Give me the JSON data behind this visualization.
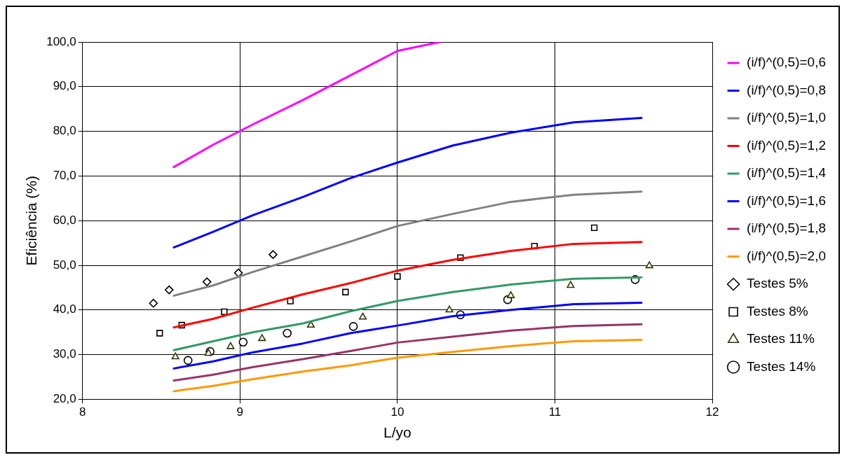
{
  "chart_data": {
    "type": "line",
    "xlabel": "L/yo",
    "ylabel": "Eficiência (%)",
    "xlim": [
      8,
      12
    ],
    "xticks": [
      8,
      9,
      10,
      11,
      12
    ],
    "ylim": [
      20,
      100
    ],
    "yticks": [
      {
        "value": 20,
        "label": "20,0"
      },
      {
        "value": 30,
        "label": "30,0"
      },
      {
        "value": 40,
        "label": "40,0"
      },
      {
        "value": 50,
        "label": "50,0"
      },
      {
        "value": 60,
        "label": "60,0"
      },
      {
        "value": 70,
        "label": "70,0"
      },
      {
        "value": 80,
        "label": "80,0"
      },
      {
        "value": 90,
        "label": "90,0"
      },
      {
        "value": 100,
        "label": "100,0"
      }
    ],
    "grid": true,
    "legend": "right",
    "line_style": "solid",
    "series": [
      {
        "name": "(i/f)^(0,5)=0,6",
        "color": "#ff00ff",
        "x": [
          8.58,
          8.83,
          9.08,
          9.4,
          9.7,
          10.0,
          10.27
        ],
        "values": [
          72,
          77,
          81.5,
          87,
          92.5,
          98,
          100
        ]
      },
      {
        "name": "(i/f)^(0,5)=0,8",
        "color": "#0000ff",
        "x": [
          8.58,
          8.83,
          9.08,
          9.4,
          9.7,
          10.0,
          10.35,
          10.72,
          11.12,
          11.55
        ],
        "values": [
          54,
          57.5,
          61.2,
          65.3,
          69.5,
          73,
          76.8,
          79.7,
          82,
          83
        ]
      },
      {
        "name": "(i/f)^(0,5)=1,0",
        "color": "#808080",
        "x": [
          8.58,
          8.83,
          9.08,
          9.4,
          9.7,
          10.0,
          10.35,
          10.72,
          11.12,
          11.55
        ],
        "values": [
          43.2,
          45.5,
          48.5,
          52,
          55.3,
          58.8,
          61.5,
          64.2,
          65.8,
          66.5
        ]
      },
      {
        "name": "(i/f)^(0,5)=1,2",
        "color": "#ff0000",
        "x": [
          8.58,
          8.83,
          9.08,
          9.4,
          9.7,
          10.0,
          10.35,
          10.72,
          11.12,
          11.55
        ],
        "values": [
          36.1,
          38,
          40.5,
          43.5,
          46,
          48.8,
          51.2,
          53.2,
          54.8,
          55.2
        ]
      },
      {
        "name": "(i/f)^(0,5)=1,4",
        "color": "#339966",
        "x": [
          8.58,
          8.83,
          9.08,
          9.4,
          9.7,
          10.0,
          10.35,
          10.72,
          11.12,
          11.55
        ],
        "values": [
          31,
          33,
          35,
          37,
          39.7,
          42,
          44,
          45.7,
          47,
          47.3
        ]
      },
      {
        "name": "(i/f)^(0,5)=1,6",
        "color": "#0000ff",
        "x": [
          8.58,
          8.83,
          9.08,
          9.4,
          9.7,
          10.0,
          10.35,
          10.72,
          11.12,
          11.55
        ],
        "values": [
          26.9,
          28.5,
          30.5,
          32.5,
          34.8,
          36.5,
          38.6,
          40,
          41.3,
          41.6
        ]
      },
      {
        "name": "(i/f)^(0,5)=1,8",
        "color": "#993366",
        "x": [
          8.58,
          8.83,
          9.08,
          9.4,
          9.7,
          10.0,
          10.35,
          10.72,
          11.12,
          11.55
        ],
        "values": [
          24.2,
          25.5,
          27.2,
          29,
          30.8,
          32.7,
          34,
          35.4,
          36.4,
          36.8
        ]
      },
      {
        "name": "(i/f)^(0,5)=2,0",
        "color": "#ff9900",
        "x": [
          8.58,
          8.83,
          9.08,
          9.4,
          9.7,
          10.0,
          10.35,
          10.72,
          11.12,
          11.55
        ],
        "values": [
          21.8,
          23,
          24.5,
          26.2,
          27.6,
          29.3,
          30.6,
          31.9,
          33,
          33.3
        ]
      },
      {
        "name": "Testes 5%",
        "type": "scatter",
        "marker": "diamond",
        "color": "#000000",
        "x": [
          8.45,
          8.55,
          8.79,
          8.99,
          9.21
        ],
        "values": [
          41.5,
          44.5,
          46.3,
          48.3,
          52.4
        ]
      },
      {
        "name": "Testes 8%",
        "type": "scatter",
        "marker": "square",
        "color": "#000000",
        "x": [
          8.49,
          8.63,
          8.9,
          9.32,
          9.67,
          10.0,
          10.4,
          10.87,
          11.25
        ],
        "values": [
          34.8,
          36.6,
          39.6,
          42,
          44,
          47.5,
          51.7,
          54.3,
          58.4
        ]
      },
      {
        "name": "Testes 11%",
        "type": "scatter",
        "marker": "triangle",
        "color": "#333300",
        "x": [
          8.59,
          8.8,
          8.94,
          9.14,
          9.45,
          9.78,
          10.33,
          10.72,
          11.1,
          11.6
        ],
        "values": [
          29.5,
          30.3,
          31.8,
          33.6,
          36.6,
          38.4,
          40,
          43.2,
          45.5,
          49.9
        ]
      },
      {
        "name": "Testes 14%",
        "type": "scatter",
        "marker": "circle",
        "color": "#000000",
        "x": [
          8.67,
          8.81,
          9.02,
          9.3,
          9.72,
          10.4,
          10.7,
          11.51
        ],
        "values": [
          28.7,
          30.7,
          32.8,
          34.8,
          36.3,
          38.9,
          42.3,
          46.8
        ]
      }
    ]
  }
}
